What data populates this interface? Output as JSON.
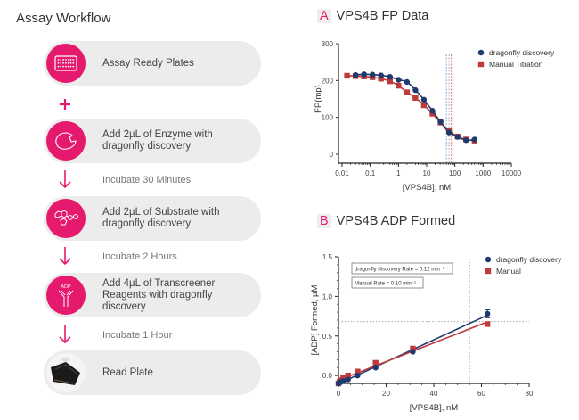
{
  "workflow": {
    "title": "Assay Workflow",
    "accent_color": "#e5196e",
    "steps": [
      {
        "label": "Assay Ready Plates",
        "icon": "microplate-icon"
      },
      {
        "label": "Add 2µL of Enzyme with dragonfly discovery",
        "icon": "enzyme-icon"
      },
      {
        "label": "Add 2µL of Substrate with dragonfly discovery",
        "icon": "substrate-molecule-icon"
      },
      {
        "label": "Add 4µL of Transcreener Reagents with dragonfly discovery",
        "icon": "adp-antibody-icon",
        "icon_text": "ADP"
      },
      {
        "label": "Read Plate",
        "icon": "plate-reader-image"
      }
    ],
    "connectors": [
      {
        "type": "plus",
        "label": ""
      },
      {
        "type": "arrow",
        "label": "Incubate 30 Minutes"
      },
      {
        "type": "arrow",
        "label": "Incubate 2 Hours"
      },
      {
        "type": "arrow",
        "label": "Incubate 1 Hour"
      }
    ]
  },
  "chart_data": [
    {
      "panel": "A",
      "type": "scatter",
      "title": "VPS4B FP Data",
      "xlabel": "[VPS4B], nM",
      "ylabel": "FP(mp)",
      "xscale": "log",
      "xlim": [
        0.01,
        10000
      ],
      "ylim": [
        0,
        300
      ],
      "xticks": [
        "0.01",
        "0.1",
        "1",
        "10",
        "100",
        "1000",
        "10000"
      ],
      "yticks": [
        "0",
        "100",
        "200",
        "300"
      ],
      "legend": "top-right",
      "reference_lines_x": [
        {
          "value": 50,
          "color": "#5a8fc9"
        },
        {
          "value": 62,
          "color": "#999999"
        },
        {
          "value": 75,
          "color": "#d05050"
        }
      ],
      "series": [
        {
          "name": "dragonfly discovery",
          "color": "#1f3a6e",
          "marker": "circle",
          "x": [
            0.03,
            0.06,
            0.12,
            0.24,
            0.5,
            1,
            2,
            4,
            8,
            16,
            31,
            62,
            125,
            250,
            500
          ],
          "y": [
            215,
            217,
            216,
            214,
            210,
            202,
            196,
            174,
            148,
            118,
            88,
            59,
            47,
            38,
            40
          ]
        },
        {
          "name": "Manual Titration",
          "color": "#c0393b",
          "marker": "square",
          "x": [
            0.015,
            0.03,
            0.06,
            0.12,
            0.24,
            0.5,
            1,
            2,
            4,
            8,
            16,
            31,
            62,
            125,
            250,
            500
          ],
          "y": [
            213,
            212,
            211,
            209,
            205,
            198,
            186,
            168,
            153,
            133,
            110,
            86,
            64,
            48,
            40,
            37
          ]
        }
      ]
    },
    {
      "panel": "B",
      "type": "scatter",
      "title": "VPS4B ADP Formed",
      "xlabel": "[VPS4B], nM",
      "ylabel": "[ADP] Formed, µM",
      "xlim": [
        0,
        80
      ],
      "ylim": [
        -0.1,
        1.5
      ],
      "xticks": [
        "0",
        "20",
        "40",
        "60",
        "80"
      ],
      "yticks": [
        "0.0",
        "0.5",
        "1.0",
        "1.5"
      ],
      "legend": "top-right",
      "annotations": [
        "dragonfly discovery Rate = 0.12 min⁻¹",
        "Manual Rate = 0.10 min⁻¹"
      ],
      "reference_lines": {
        "x": 55,
        "y": 0.68
      },
      "series": [
        {
          "name": "dragonfly discovery",
          "color": "#1f3a6e",
          "marker": "circle",
          "x": [
            0,
            0.5,
            1,
            2,
            4,
            8,
            15.6,
            31.2,
            62.5
          ],
          "y": [
            -0.1,
            -0.09,
            -0.08,
            -0.07,
            -0.05,
            0.0,
            0.1,
            0.3,
            0.78
          ],
          "error": [
            0,
            0,
            0,
            0,
            0,
            0,
            0,
            0,
            0.05
          ]
        },
        {
          "name": "Manual",
          "color": "#c0393b",
          "marker": "square",
          "x": [
            0,
            0.5,
            1,
            2,
            4,
            8,
            15.6,
            31.2,
            62.5
          ],
          "y": [
            -0.1,
            -0.08,
            -0.06,
            -0.03,
            0.0,
            0.05,
            0.16,
            0.34,
            0.65
          ]
        }
      ]
    }
  ]
}
